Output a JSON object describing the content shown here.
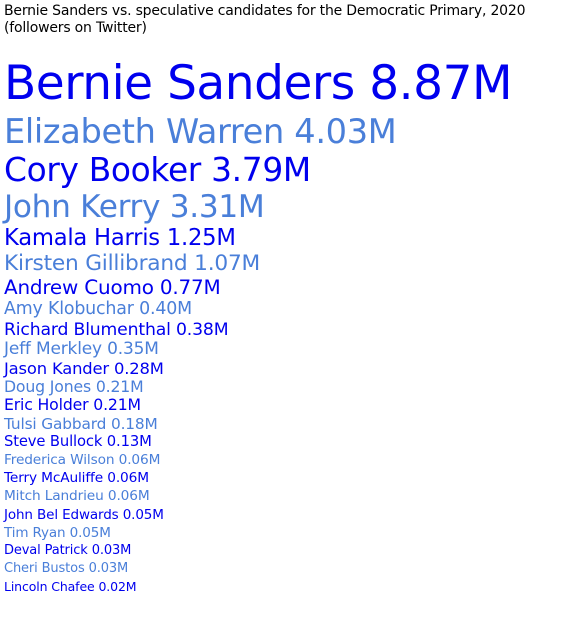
{
  "chart_data": {
    "type": "table",
    "title_line1": "Bernie Sanders vs. speculative candidates for the Democratic Primary, 2020",
    "title_line2": "(followers on Twitter)",
    "unit_suffix": "M",
    "colors": [
      "#0000ee",
      "#4a7fd9"
    ],
    "entries": [
      {
        "name": "Bernie Sanders",
        "value": 8.87,
        "label": "8.87M"
      },
      {
        "name": "Elizabeth Warren",
        "value": 4.03,
        "label": "4.03M"
      },
      {
        "name": "Cory Booker",
        "value": 3.79,
        "label": "3.79M"
      },
      {
        "name": "John Kerry",
        "value": 3.31,
        "label": "3.31M"
      },
      {
        "name": "Kamala Harris",
        "value": 1.25,
        "label": "1.25M"
      },
      {
        "name": "Kirsten Gillibrand",
        "value": 1.07,
        "label": "1.07M"
      },
      {
        "name": "Andrew Cuomo",
        "value": 0.77,
        "label": "0.77M"
      },
      {
        "name": "Amy Klobuchar",
        "value": 0.4,
        "label": "0.40M"
      },
      {
        "name": "Richard Blumenthal",
        "value": 0.38,
        "label": "0.38M"
      },
      {
        "name": "Jeff Merkley",
        "value": 0.35,
        "label": "0.35M"
      },
      {
        "name": "Jason Kander",
        "value": 0.28,
        "label": "0.28M"
      },
      {
        "name": "Doug Jones",
        "value": 0.21,
        "label": "0.21M"
      },
      {
        "name": "Eric Holder",
        "value": 0.21,
        "label": "0.21M"
      },
      {
        "name": "Tulsi Gabbard",
        "value": 0.18,
        "label": "0.18M"
      },
      {
        "name": "Steve Bullock",
        "value": 0.13,
        "label": "0.13M"
      },
      {
        "name": "Frederica Wilson",
        "value": 0.06,
        "label": "0.06M"
      },
      {
        "name": "Terry McAuliffe",
        "value": 0.06,
        "label": "0.06M"
      },
      {
        "name": "Mitch Landrieu",
        "value": 0.06,
        "label": "0.06M"
      },
      {
        "name": "John Bel Edwards",
        "value": 0.05,
        "label": "0.05M"
      },
      {
        "name": "Tim Ryan",
        "value": 0.05,
        "label": "0.05M"
      },
      {
        "name": "Deval Patrick",
        "value": 0.03,
        "label": "0.03M"
      },
      {
        "name": "Cheri Bustos",
        "value": 0.03,
        "label": "0.03M"
      },
      {
        "name": "Lincoln Chafee",
        "value": 0.02,
        "label": "0.02M"
      }
    ]
  }
}
